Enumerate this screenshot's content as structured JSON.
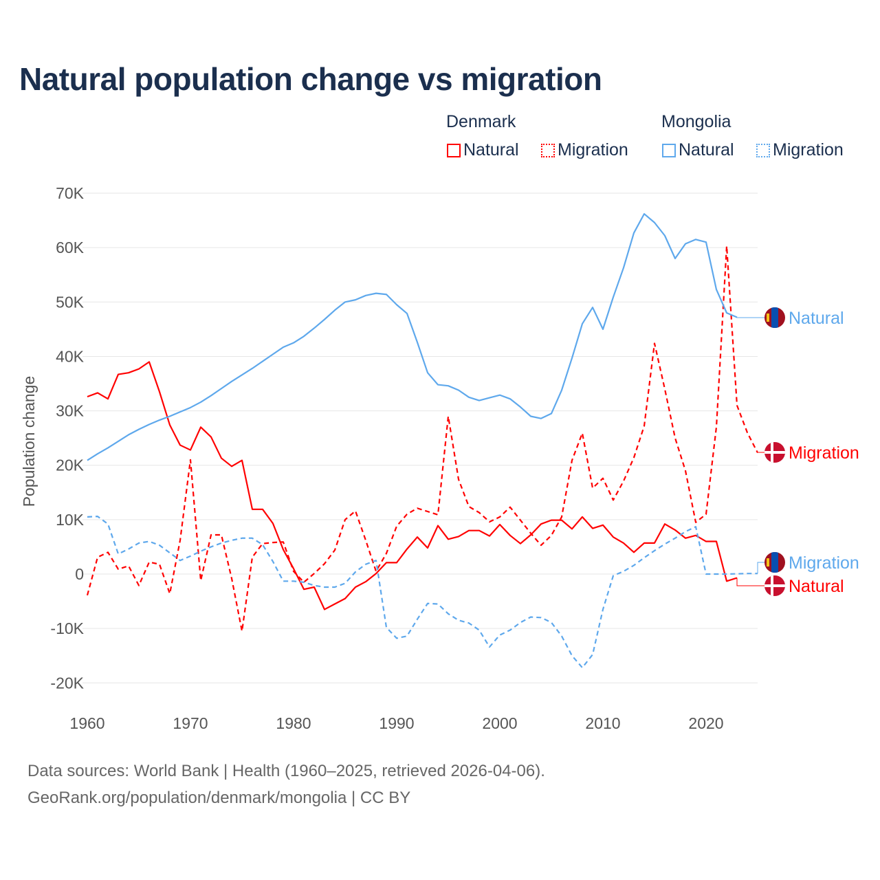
{
  "chart_data": {
    "type": "line",
    "title": "Natural population change vs migration",
    "xlabel": "",
    "ylabel": "Population change",
    "xlim": [
      1960,
      2025
    ],
    "ylim": [
      -20000,
      70000
    ],
    "grid": true,
    "x_ticks": [
      "1960",
      "1970",
      "1980",
      "1990",
      "2000",
      "2010",
      "2020"
    ],
    "y_ticks": [
      {
        "value": 70000,
        "label": "70K"
      },
      {
        "value": 60000,
        "label": "60K"
      },
      {
        "value": 50000,
        "label": "50K"
      },
      {
        "value": 40000,
        "label": "40K"
      },
      {
        "value": 30000,
        "label": "30K"
      },
      {
        "value": 20000,
        "label": "20K"
      },
      {
        "value": 10000,
        "label": "10K"
      },
      {
        "value": 0,
        "label": "0"
      },
      {
        "value": -10000,
        "label": "-10K"
      },
      {
        "value": -20000,
        "label": "-20K"
      }
    ],
    "legend": {
      "placement": "top-right",
      "groups": [
        {
          "country": "Denmark",
          "items": [
            "Natural",
            "Migration"
          ]
        },
        {
          "country": "Mongolia",
          "items": [
            "Natural",
            "Migration"
          ]
        }
      ]
    },
    "series": [
      {
        "name": "Natural",
        "country": "Denmark",
        "color": "#ff0000",
        "dash": "solid",
        "start_year": 1960,
        "end_label": "Natural",
        "values": [
          32.6,
          33.3,
          32.2,
          36.7,
          37.0,
          37.7,
          39.0,
          33.5,
          27.4,
          23.7,
          22.8,
          27.0,
          25.2,
          21.3,
          19.8,
          20.9,
          11.9,
          11.9,
          9.3,
          4.5,
          1.0,
          -2.8,
          -2.4,
          -6.5,
          -5.5,
          -4.5,
          -2.4,
          -1.4,
          0.1,
          2.1,
          2.1,
          4.6,
          6.8,
          4.8,
          8.9,
          6.4,
          6.9,
          8.0,
          8.0,
          7.0,
          9.1,
          7.1,
          5.6,
          7.2,
          9.2,
          9.9,
          9.9,
          8.3,
          10.5,
          8.4,
          9.0,
          6.8,
          5.7,
          4.0,
          5.7,
          5.7,
          9.2,
          8.1,
          6.6,
          7.1,
          6.0,
          6.0,
          -1.3,
          -0.7
        ]
      },
      {
        "name": "Migration",
        "country": "Denmark",
        "color": "#ff0000",
        "dash": "dashed",
        "start_year": 1960,
        "end_label": "Migration",
        "values": [
          -3.9,
          3.1,
          4.0,
          0.9,
          1.5,
          -2.1,
          2.2,
          1.8,
          -3.6,
          6.2,
          21.0,
          -1.2,
          7.2,
          7.2,
          -0.8,
          -10.5,
          3.1,
          5.6,
          5.8,
          5.9,
          0.5,
          -1.5,
          0.1,
          1.9,
          4.4,
          10.0,
          11.6,
          6.2,
          0.5,
          3.8,
          8.8,
          11.0,
          12.1,
          11.5,
          10.9,
          29.0,
          17.4,
          12.4,
          11.3,
          9.6,
          10.5,
          12.3,
          9.9,
          7.5,
          5.3,
          7.1,
          10.5,
          20.9,
          25.9,
          15.8,
          17.6,
          13.6,
          17.1,
          21.4,
          27.2,
          42.4,
          34.0,
          25.0,
          19.0,
          9.5,
          11.0,
          27.0,
          60.3,
          31.0,
          26.0,
          22.3
        ]
      },
      {
        "name": "Natural",
        "country": "Mongolia",
        "color": "#5ea8ec",
        "dash": "solid",
        "start_year": 1960,
        "end_label": "Natural",
        "values": [
          20.9,
          22.1,
          23.2,
          24.4,
          25.6,
          26.6,
          27.5,
          28.3,
          29.0,
          29.8,
          30.6,
          31.6,
          32.8,
          34.1,
          35.4,
          36.6,
          37.8,
          39.1,
          40.4,
          41.7,
          42.5,
          43.7,
          45.2,
          46.8,
          48.5,
          50.0,
          50.4,
          51.2,
          51.6,
          51.4,
          49.5,
          47.9,
          42.6,
          37.0,
          34.8,
          34.6,
          33.8,
          32.5,
          31.9,
          32.4,
          32.9,
          32.2,
          30.7,
          29.0,
          28.6,
          29.5,
          33.8,
          39.7,
          46.0,
          49.0,
          45.0,
          50.9,
          56.3,
          62.7,
          66.2,
          64.6,
          62.2,
          58.0,
          60.7,
          61.5,
          61.0,
          52.3,
          48.0,
          47.2
        ]
      },
      {
        "name": "Migration",
        "country": "Mongolia",
        "color": "#5ea8ec",
        "dash": "dashed",
        "start_year": 1960,
        "end_label": "Migration",
        "values": [
          10.5,
          10.6,
          9.2,
          3.7,
          4.6,
          5.7,
          6.0,
          5.3,
          3.9,
          2.5,
          3.3,
          4.2,
          5.0,
          5.7,
          6.2,
          6.6,
          6.6,
          5.4,
          2.3,
          -1.3,
          -1.3,
          -1.5,
          -2.1,
          -2.4,
          -2.4,
          -1.7,
          0.4,
          1.8,
          2.5,
          -9.8,
          -11.8,
          -11.4,
          -8.3,
          -5.4,
          -5.5,
          -7.3,
          -8.5,
          -9.0,
          -10.3,
          -13.4,
          -11.2,
          -10.3,
          -8.9,
          -7.9,
          -8.0,
          -8.9,
          -11.4,
          -15.0,
          -17.2,
          -14.8,
          -6.5,
          -0.3,
          0.5,
          1.6,
          3.0,
          4.3,
          5.5,
          6.6,
          7.8,
          8.7,
          0.0,
          0.0,
          0.0,
          0.05,
          0.1,
          0.1
        ]
      }
    ],
    "value_unit": "thousands"
  },
  "footer": {
    "line1": "Data sources: World Bank | Health (1960–2025, retrieved 2026-04-06).",
    "line2": "GeoRank.org/population/denmark/mongolia | CC BY"
  },
  "colors": {
    "title": "#1b2f4e",
    "denmark": "#ff0000",
    "mongolia": "#5ea8ec",
    "grid": "#e6e6e6"
  }
}
